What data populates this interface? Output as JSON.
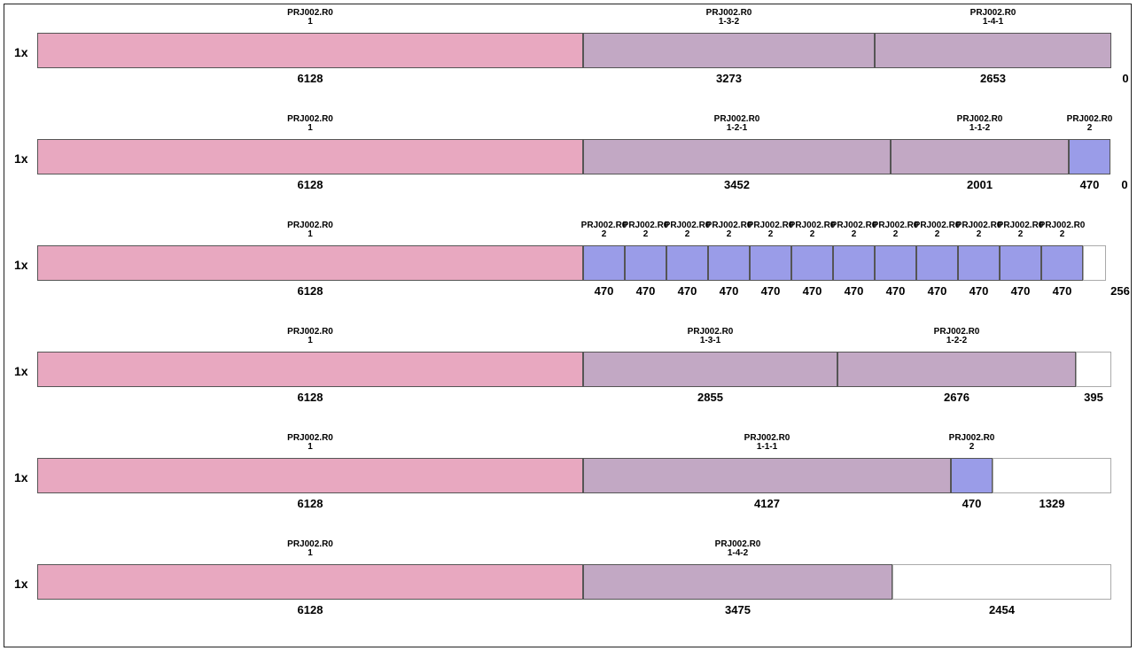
{
  "colors": {
    "part_1": "#e8a8c0",
    "part_1x": "#c2a8c4",
    "part_2": "#9a9ce8",
    "waste": "#ffffff"
  },
  "bars": [
    {
      "qty": "1x",
      "segments": [
        {
          "kind": "part_1",
          "name": "PRJ002.R0",
          "id": "1",
          "len": 6128
        },
        {
          "kind": "part_1x",
          "name": "PRJ002.R0",
          "id": "1-3-2",
          "len": 3273
        },
        {
          "kind": "part_1x",
          "name": "PRJ002.R0",
          "id": "1-4-1",
          "len": 2653
        },
        {
          "kind": "waste",
          "name": "",
          "id": "",
          "len": 0
        }
      ]
    },
    {
      "qty": "1x",
      "segments": [
        {
          "kind": "part_1",
          "name": "PRJ002.R0",
          "id": "1",
          "len": 6128
        },
        {
          "kind": "part_1x",
          "name": "PRJ002.R0",
          "id": "1-2-1",
          "len": 3452
        },
        {
          "kind": "part_1x",
          "name": "PRJ002.R0",
          "id": "1-1-2",
          "len": 2001
        },
        {
          "kind": "part_2",
          "name": "PRJ002.R0",
          "id": "2",
          "len": 470
        },
        {
          "kind": "waste",
          "name": "",
          "id": "",
          "len": 0
        }
      ]
    },
    {
      "qty": "1x",
      "segments": [
        {
          "kind": "part_1",
          "name": "PRJ002.R0",
          "id": "1",
          "len": 6128
        },
        {
          "kind": "part_2",
          "name": "PRJ002.R0",
          "id": "2",
          "len": 470
        },
        {
          "kind": "part_2",
          "name": "PRJ002.R0",
          "id": "2",
          "len": 470
        },
        {
          "kind": "part_2",
          "name": "PRJ002.R0",
          "id": "2",
          "len": 470
        },
        {
          "kind": "part_2",
          "name": "PRJ002.R0",
          "id": "2",
          "len": 470
        },
        {
          "kind": "part_2",
          "name": "PRJ002.R0",
          "id": "2",
          "len": 470
        },
        {
          "kind": "part_2",
          "name": "PRJ002.R0",
          "id": "2",
          "len": 470
        },
        {
          "kind": "part_2",
          "name": "PRJ002.R0",
          "id": "2",
          "len": 470
        },
        {
          "kind": "part_2",
          "name": "PRJ002.R0",
          "id": "2",
          "len": 470
        },
        {
          "kind": "part_2",
          "name": "PRJ002.R0",
          "id": "2",
          "len": 470
        },
        {
          "kind": "part_2",
          "name": "PRJ002.R0",
          "id": "2",
          "len": 470
        },
        {
          "kind": "part_2",
          "name": "PRJ002.R0",
          "id": "2",
          "len": 470
        },
        {
          "kind": "part_2",
          "name": "PRJ002.R0",
          "id": "2",
          "len": 470
        },
        {
          "kind": "waste",
          "name": "",
          "id": "",
          "len": 256
        }
      ]
    },
    {
      "qty": "1x",
      "segments": [
        {
          "kind": "part_1",
          "name": "PRJ002.R0",
          "id": "1",
          "len": 6128
        },
        {
          "kind": "part_1x",
          "name": "PRJ002.R0",
          "id": "1-3-1",
          "len": 2855
        },
        {
          "kind": "part_1x",
          "name": "PRJ002.R0",
          "id": "1-2-2",
          "len": 2676
        },
        {
          "kind": "waste",
          "name": "",
          "id": "",
          "len": 395
        }
      ]
    },
    {
      "qty": "1x",
      "segments": [
        {
          "kind": "part_1",
          "name": "PRJ002.R0",
          "id": "1",
          "len": 6128
        },
        {
          "kind": "part_1x",
          "name": "PRJ002.R0",
          "id": "1-1-1",
          "len": 4127
        },
        {
          "kind": "part_2",
          "name": "PRJ002.R0",
          "id": "2",
          "len": 470
        },
        {
          "kind": "waste",
          "name": "",
          "id": "",
          "len": 1329
        }
      ]
    },
    {
      "qty": "1x",
      "segments": [
        {
          "kind": "part_1",
          "name": "PRJ002.R0",
          "id": "1",
          "len": 6128
        },
        {
          "kind": "part_1x",
          "name": "PRJ002.R0",
          "id": "1-4-2",
          "len": 3475
        },
        {
          "kind": "waste",
          "name": "",
          "id": "",
          "len": 2454
        }
      ]
    }
  ]
}
